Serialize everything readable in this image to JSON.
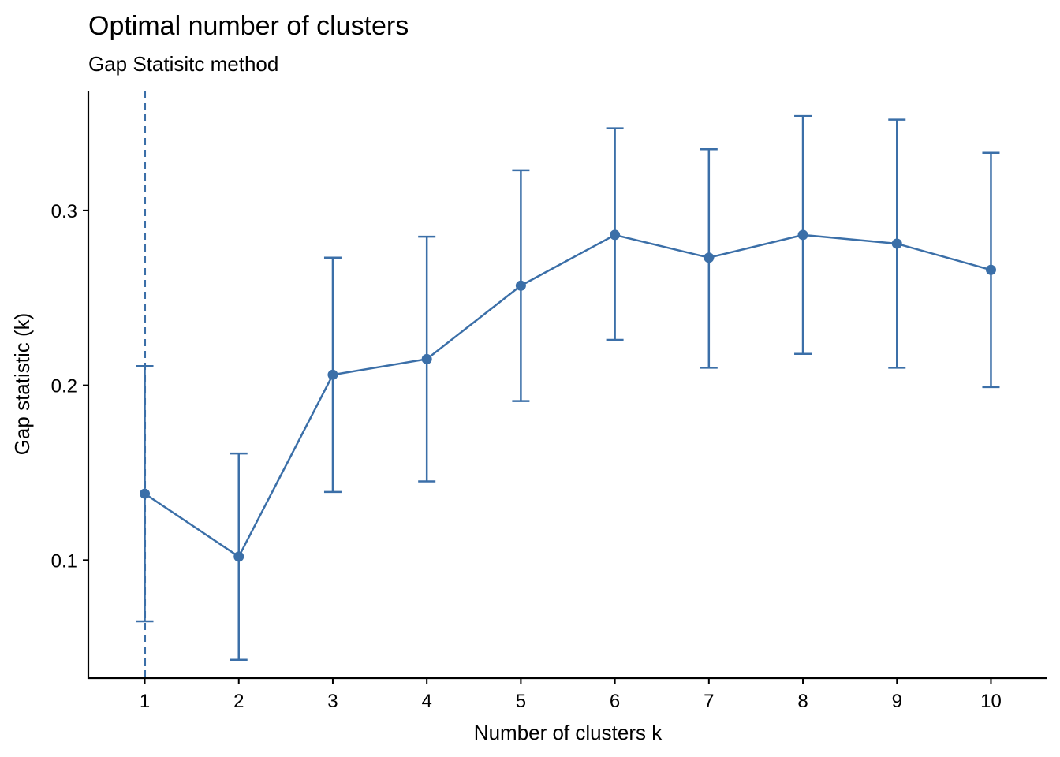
{
  "chart_data": {
    "type": "line",
    "title": "Optimal number of clusters",
    "subtitle": "Gap Statisitc method",
    "xlabel": "Number of clusters k",
    "ylabel": "Gap statistic (k)",
    "x": [
      1,
      2,
      3,
      4,
      5,
      6,
      7,
      8,
      9,
      10
    ],
    "x_tick_labels": [
      "1",
      "2",
      "3",
      "4",
      "5",
      "6",
      "7",
      "8",
      "9",
      "10"
    ],
    "y_ticks": [
      0.1,
      0.2,
      0.3
    ],
    "y_tick_labels": [
      "0.1",
      "0.2",
      "0.3"
    ],
    "xlim": [
      0.4,
      10.6
    ],
    "ylim": [
      0.0325,
      0.3685
    ],
    "series": [
      {
        "values": [
          0.138,
          0.102,
          0.206,
          0.215,
          0.257,
          0.286,
          0.273,
          0.286,
          0.281,
          0.266
        ],
        "error_low": [
          0.065,
          0.043,
          0.139,
          0.145,
          0.191,
          0.226,
          0.21,
          0.218,
          0.21,
          0.199
        ],
        "error_high": [
          0.211,
          0.161,
          0.273,
          0.285,
          0.323,
          0.347,
          0.335,
          0.354,
          0.352,
          0.333
        ]
      }
    ],
    "optimal_k": 1,
    "grid": false,
    "colors": {
      "series": "#3B6FA8",
      "axis": "#000000"
    }
  }
}
